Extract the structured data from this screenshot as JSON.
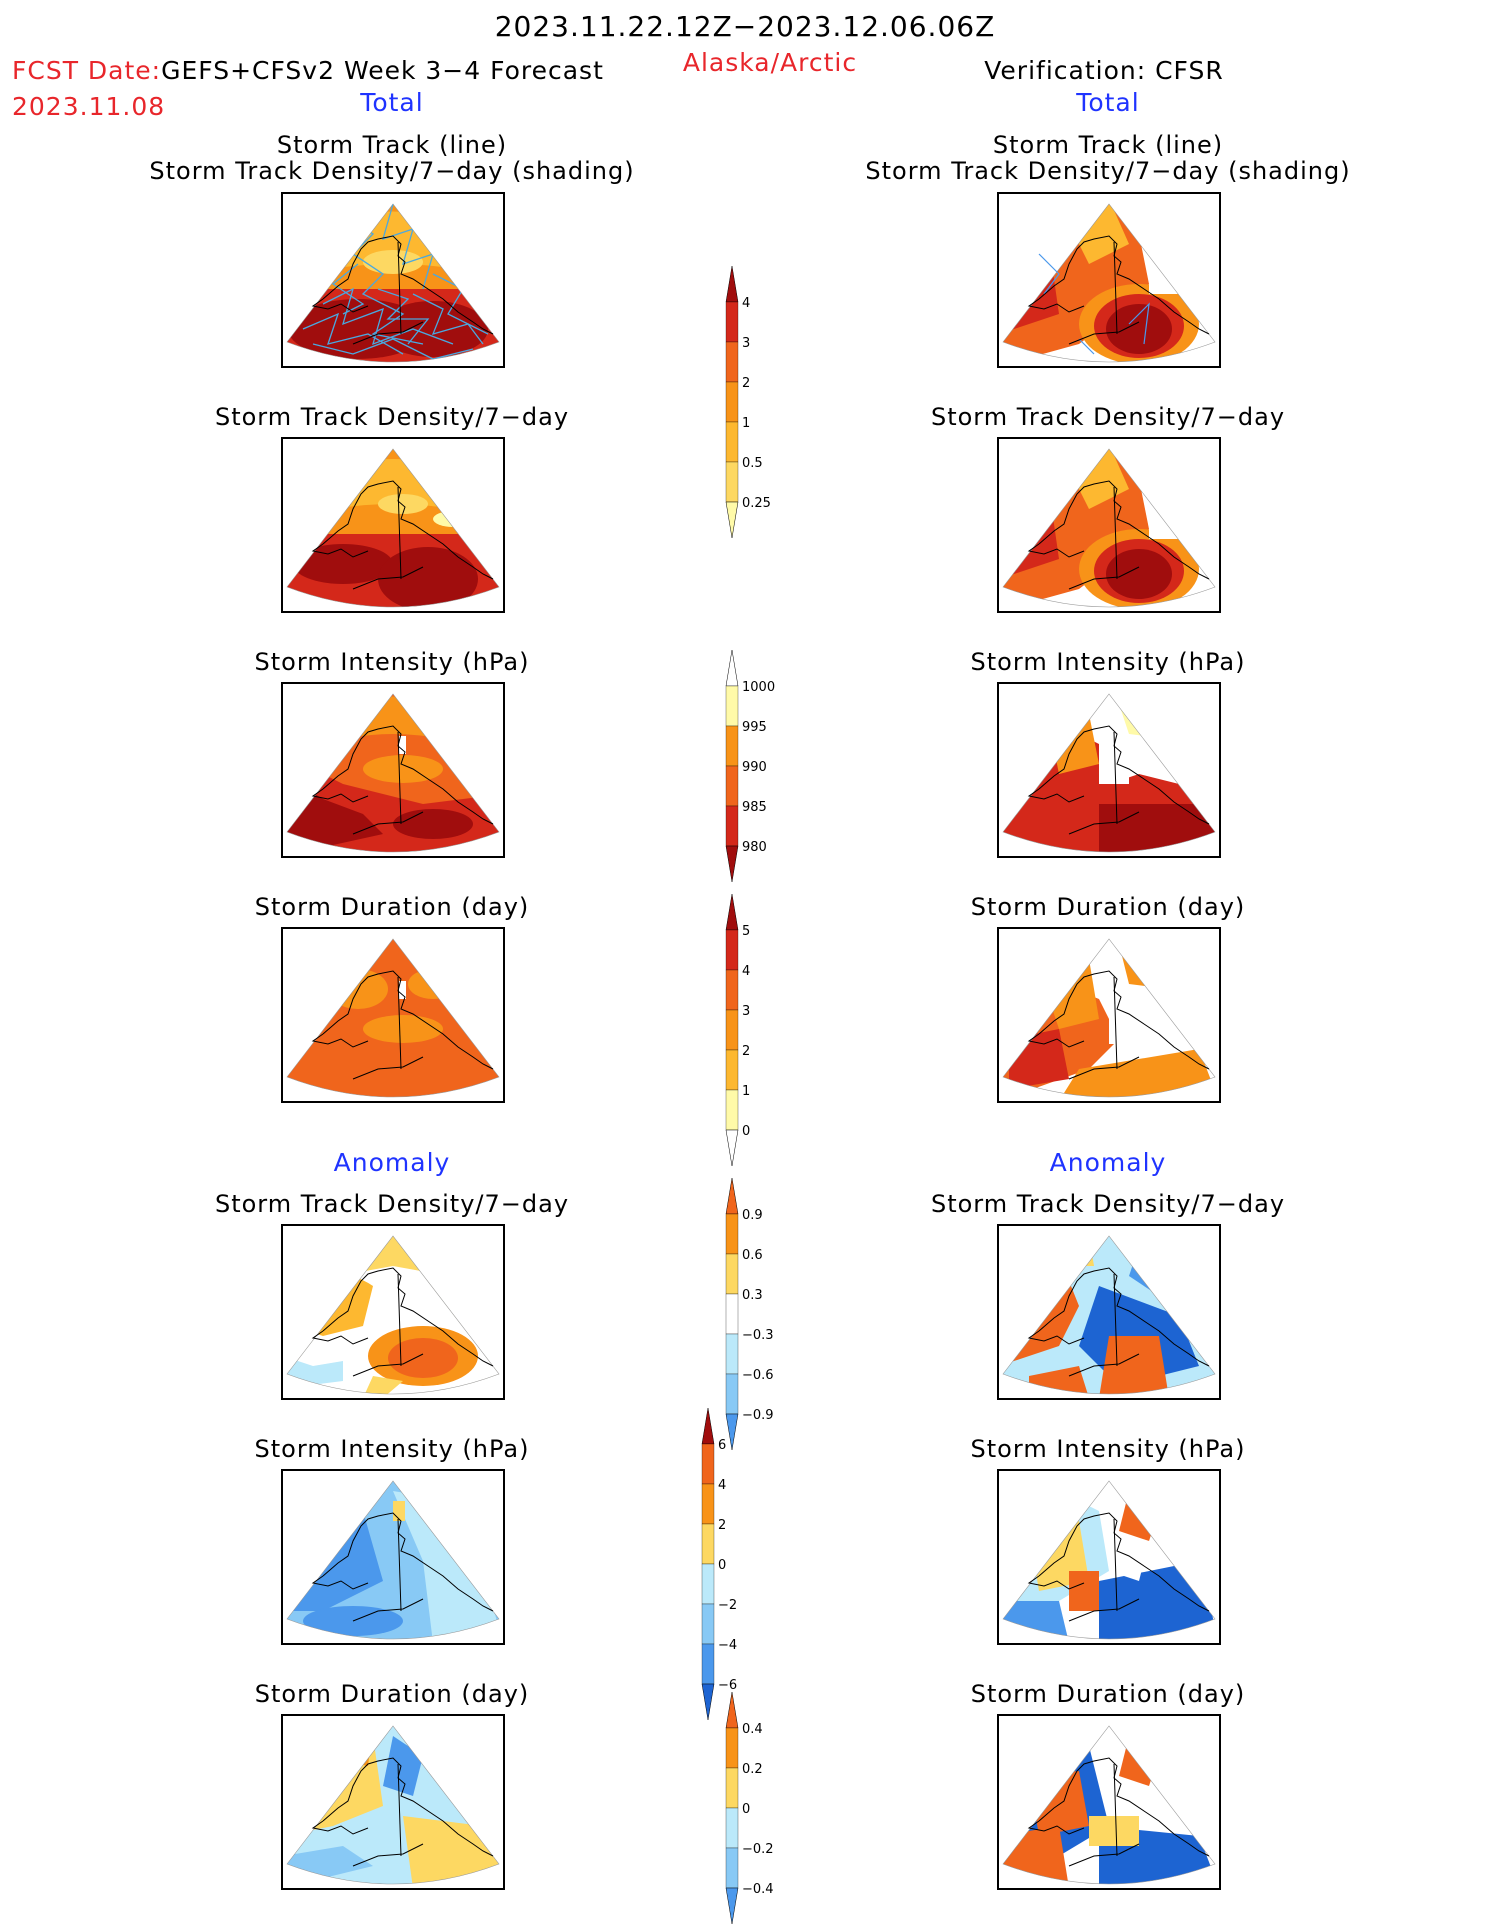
{
  "header": {
    "period": "2023.11.22.12Z−2023.12.06.06Z",
    "fcst_date_label": "FCST Date:",
    "forecast_name": "GEFS+CFSv2 Week 3−4 Forecast",
    "fcst_date": "2023.11.08",
    "region": "Alaska/Arctic",
    "verification": "Verification: CFSR",
    "left_total": "Total",
    "right_total": "Total",
    "left_anomaly": "Anomaly",
    "right_anomaly": "Anomaly"
  },
  "panel_titles": {
    "track_line": "Storm Track (line)",
    "track_shading": "Storm Track Density/7−day (shading)",
    "density": "Storm Track Density/7−day",
    "intensity": "Storm Intensity (hPa)",
    "duration": "Storm Duration (day)"
  },
  "colorbars": {
    "density_total": [
      "4",
      "3",
      "2",
      "1",
      "0.5",
      "0.25"
    ],
    "intensity_total": [
      "1000",
      "995",
      "990",
      "985",
      "980"
    ],
    "duration_total": [
      "5",
      "4",
      "3",
      "2",
      "1",
      "0"
    ],
    "density_anom": [
      "0.9",
      "0.6",
      "0.3",
      "−0.3",
      "−0.6",
      "−0.9"
    ],
    "intensity_anom": [
      "6",
      "4",
      "2",
      "0",
      "−2",
      "−4",
      "−6"
    ],
    "duration_anom": [
      "0.4",
      "0.2",
      "0",
      "−0.2",
      "−0.4"
    ]
  },
  "colors": {
    "yellow_light": "#fffaa8",
    "yellow": "#fdd862",
    "orange_light": "#fdb830",
    "orange": "#f89318",
    "orange_red": "#f0651c",
    "red": "#d4281a",
    "dark_red": "#a00d0d",
    "blue_light": "#bbe9fa",
    "blue_mid": "#88c9f5",
    "blue": "#4b98ec",
    "blue_dark": "#1d64d2",
    "track_line": "#4aa8e0",
    "title_red": "#e8262b",
    "title_blue": "#1f33ff"
  }
}
